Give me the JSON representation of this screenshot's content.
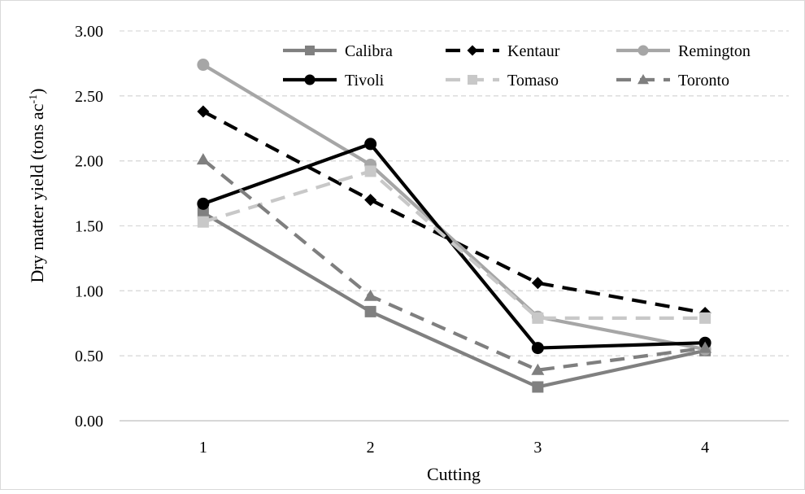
{
  "chart_data": {
    "type": "line",
    "title": "",
    "xlabel": "Cutting",
    "ylabel_main": "Dry matter yield (tons ac",
    "ylabel_sup": "-1",
    "ylabel_close": ")",
    "categories": [
      "1",
      "2",
      "3",
      "4"
    ],
    "ylim": [
      0,
      3
    ],
    "yticks": [
      "0.00",
      "0.50",
      "1.00",
      "1.50",
      "2.00",
      "2.50",
      "3.00"
    ],
    "grid": "horizontal dashed",
    "legend_position": "top-right",
    "series": [
      {
        "name": "Calibra",
        "values": [
          1.6,
          0.84,
          0.26,
          0.54
        ],
        "color": "#808080",
        "dash": "solid",
        "marker": "square"
      },
      {
        "name": "Kentaur",
        "values": [
          2.38,
          1.7,
          1.06,
          0.83
        ],
        "color": "#000000",
        "dash": "dash",
        "marker": "diamond"
      },
      {
        "name": "Remington",
        "values": [
          2.74,
          1.97,
          0.8,
          0.55
        ],
        "color": "#a6a6a6",
        "dash": "solid",
        "marker": "circle"
      },
      {
        "name": "Tivoli",
        "values": [
          1.67,
          2.13,
          0.56,
          0.6
        ],
        "color": "#000000",
        "dash": "solid",
        "marker": "circle"
      },
      {
        "name": "Tomaso",
        "values": [
          1.53,
          1.92,
          0.79,
          0.79
        ],
        "color": "#c8c8c8",
        "dash": "dash",
        "marker": "square"
      },
      {
        "name": "Toronto",
        "values": [
          2.01,
          0.96,
          0.39,
          0.56
        ],
        "color": "#7f7f7f",
        "dash": "dash",
        "marker": "triangle"
      }
    ]
  }
}
